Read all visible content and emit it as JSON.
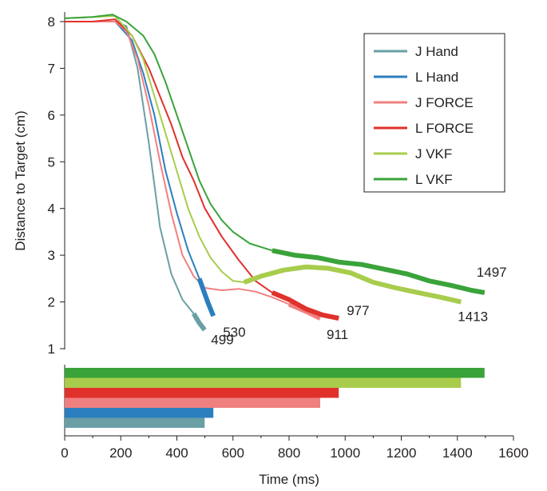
{
  "chart_data": {
    "type": "line",
    "xlabel": "Time (ms)",
    "ylabel": "Distance to Target (cm)",
    "xlim": [
      0,
      1600
    ],
    "ylim": [
      1,
      8.2
    ],
    "x_ticks": [
      "0",
      "200",
      "400",
      "600",
      "800",
      "1000",
      "1200",
      "1400",
      "1600"
    ],
    "y_ticks": [
      "1",
      "2",
      "3",
      "4",
      "5",
      "6",
      "7",
      "8"
    ],
    "legend_position": "top-right",
    "series": [
      {
        "name": "J Hand",
        "color": "#6a9fa6",
        "end_label": "499",
        "duration": 499,
        "points": [
          [
            0,
            8.0
          ],
          [
            100,
            8.0
          ],
          [
            180,
            8.0
          ],
          [
            220,
            7.9
          ],
          [
            260,
            7.0
          ],
          [
            300,
            5.4
          ],
          [
            340,
            3.6
          ],
          [
            380,
            2.6
          ],
          [
            420,
            2.05
          ],
          [
            460,
            1.75
          ],
          [
            480,
            1.55
          ],
          [
            499,
            1.4
          ]
        ]
      },
      {
        "name": "L Hand",
        "color": "#2b7fbf",
        "end_label": "530",
        "duration": 530,
        "points": [
          [
            0,
            8.0
          ],
          [
            100,
            8.0
          ],
          [
            180,
            8.0
          ],
          [
            240,
            7.6
          ],
          [
            280,
            6.9
          ],
          [
            320,
            6.0
          ],
          [
            360,
            4.8
          ],
          [
            400,
            3.9
          ],
          [
            440,
            3.1
          ],
          [
            480,
            2.5
          ],
          [
            510,
            2.0
          ],
          [
            530,
            1.7
          ]
        ]
      },
      {
        "name": "J FORCE",
        "color": "#f08080",
        "end_label": "911",
        "duration": 911,
        "points": [
          [
            0,
            8.0
          ],
          [
            100,
            8.0
          ],
          [
            180,
            8.0
          ],
          [
            220,
            7.8
          ],
          [
            260,
            7.2
          ],
          [
            300,
            6.2
          ],
          [
            340,
            5.0
          ],
          [
            380,
            3.9
          ],
          [
            420,
            3.0
          ],
          [
            460,
            2.55
          ],
          [
            500,
            2.3
          ],
          [
            560,
            2.25
          ],
          [
            620,
            2.28
          ],
          [
            680,
            2.22
          ],
          [
            740,
            2.1
          ],
          [
            800,
            1.95
          ],
          [
            860,
            1.8
          ],
          [
            911,
            1.65
          ]
        ]
      },
      {
        "name": "L FORCE",
        "color": "#e0312b",
        "end_label": "977",
        "duration": 977,
        "points": [
          [
            0,
            8.0
          ],
          [
            100,
            8.0
          ],
          [
            180,
            8.05
          ],
          [
            240,
            7.7
          ],
          [
            300,
            7.0
          ],
          [
            340,
            6.4
          ],
          [
            380,
            5.8
          ],
          [
            420,
            5.1
          ],
          [
            460,
            4.6
          ],
          [
            500,
            4.0
          ],
          [
            560,
            3.4
          ],
          [
            620,
            2.9
          ],
          [
            680,
            2.45
          ],
          [
            740,
            2.2
          ],
          [
            800,
            2.05
          ],
          [
            860,
            1.85
          ],
          [
            920,
            1.72
          ],
          [
            977,
            1.65
          ]
        ]
      },
      {
        "name": "J VKF",
        "color": "#a8cc4c",
        "end_label": "1413",
        "duration": 1413,
        "points": [
          [
            0,
            8.07
          ],
          [
            100,
            8.1
          ],
          [
            180,
            8.12
          ],
          [
            240,
            7.7
          ],
          [
            280,
            7.2
          ],
          [
            320,
            6.4
          ],
          [
            360,
            5.6
          ],
          [
            400,
            4.8
          ],
          [
            440,
            4.0
          ],
          [
            480,
            3.4
          ],
          [
            520,
            2.95
          ],
          [
            560,
            2.65
          ],
          [
            600,
            2.45
          ],
          [
            640,
            2.42
          ],
          [
            700,
            2.55
          ],
          [
            780,
            2.68
          ],
          [
            860,
            2.75
          ],
          [
            940,
            2.72
          ],
          [
            1020,
            2.62
          ],
          [
            1100,
            2.42
          ],
          [
            1180,
            2.3
          ],
          [
            1260,
            2.2
          ],
          [
            1340,
            2.1
          ],
          [
            1413,
            2.0
          ]
        ]
      },
      {
        "name": "L VKF",
        "color": "#3aa33a",
        "end_label": "1497",
        "duration": 1497,
        "points": [
          [
            0,
            8.07
          ],
          [
            100,
            8.1
          ],
          [
            170,
            8.15
          ],
          [
            220,
            8.0
          ],
          [
            280,
            7.7
          ],
          [
            320,
            7.3
          ],
          [
            360,
            6.7
          ],
          [
            400,
            6.0
          ],
          [
            440,
            5.3
          ],
          [
            480,
            4.6
          ],
          [
            520,
            4.1
          ],
          [
            560,
            3.75
          ],
          [
            600,
            3.5
          ],
          [
            660,
            3.25
          ],
          [
            740,
            3.1
          ],
          [
            820,
            3.0
          ],
          [
            900,
            2.95
          ],
          [
            980,
            2.85
          ],
          [
            1060,
            2.8
          ],
          [
            1140,
            2.7
          ],
          [
            1220,
            2.6
          ],
          [
            1300,
            2.45
          ],
          [
            1380,
            2.35
          ],
          [
            1450,
            2.25
          ],
          [
            1497,
            2.2
          ]
        ]
      }
    ]
  }
}
